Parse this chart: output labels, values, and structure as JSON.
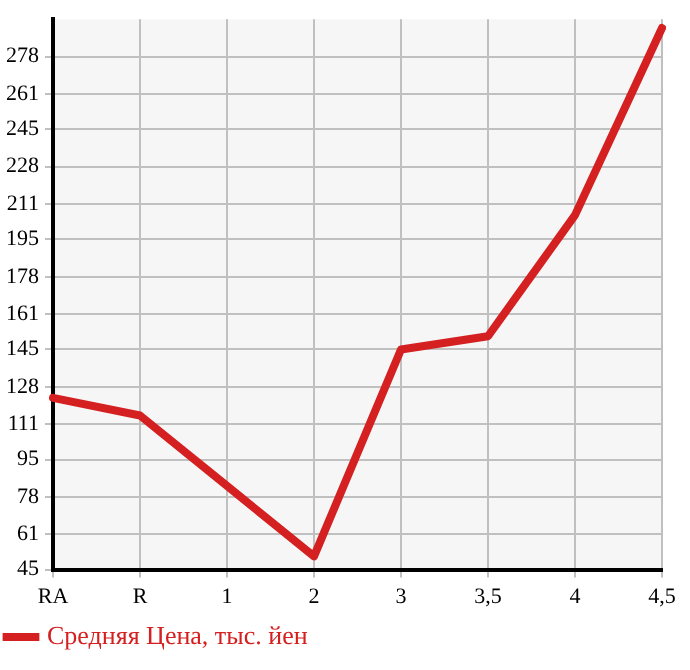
{
  "chart_data": {
    "type": "line",
    "categories": [
      "RA",
      "R",
      "1",
      "2",
      "3",
      "3,5",
      "4",
      "4,5"
    ],
    "series": [
      {
        "name": "Средняя Цена, тыс. йен",
        "color": "#d42020",
        "values": [
          123,
          115,
          83,
          51,
          145,
          151,
          206,
          291
        ]
      }
    ],
    "ylim": [
      45,
      295
    ],
    "yticks": [
      45,
      61,
      78,
      95,
      111,
      128,
      145,
      161,
      178,
      195,
      211,
      228,
      245,
      261,
      278
    ],
    "grid": true,
    "legend": "bottom left",
    "marker": "none",
    "line_style": "solid"
  }
}
